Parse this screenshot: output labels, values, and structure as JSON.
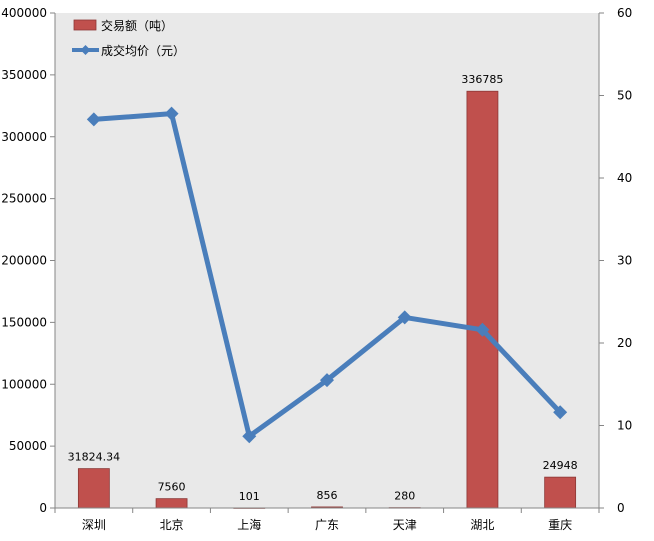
{
  "chart_data": {
    "type": "bar",
    "categories": [
      "深圳",
      "北京",
      "上海",
      "广东",
      "天津",
      "湖北",
      "重庆"
    ],
    "series": [
      {
        "name": "交易额（吨）",
        "type": "bar",
        "axis": "left",
        "color": "#c0504d",
        "values": [
          31824.34,
          7560,
          101,
          856,
          280,
          336785,
          24948
        ],
        "data_labels": [
          "31824.34",
          "7560",
          "101",
          "856",
          "280",
          "336785",
          "24948"
        ]
      },
      {
        "name": "成交均价（元）",
        "type": "line",
        "axis": "right",
        "color": "#4a7ebb",
        "marker": "diamond",
        "values": [
          47.1,
          47.8,
          8.7,
          15.5,
          23.1,
          21.6,
          11.6
        ]
      }
    ],
    "y_left": {
      "range": [
        0,
        400000
      ],
      "ticks": [
        "0",
        "50000",
        "100000",
        "150000",
        "200000",
        "250000",
        "300000",
        "350000",
        "400000"
      ]
    },
    "y_right": {
      "range": [
        0,
        60
      ],
      "ticks": [
        "0",
        "10",
        "20",
        "30",
        "40",
        "50",
        "60"
      ]
    },
    "legend_position": "top-left-inside",
    "grid": false,
    "plot_background": "#e9e9e9"
  }
}
